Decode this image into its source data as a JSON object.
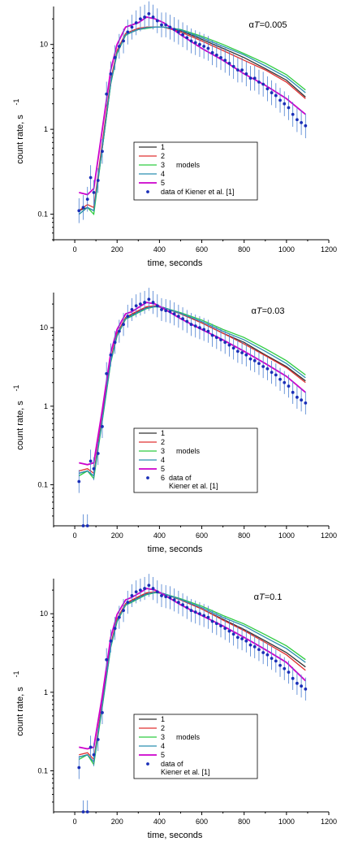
{
  "chart_data": [
    {
      "type": "line",
      "annotation_prefix": "α",
      "annotation_var": "T",
      "annotation_value": "=0.005",
      "xlabel": "time, seconds",
      "ylabel": "count rate, s",
      "ylabel_sup": "-1",
      "x_ticks": [
        "0",
        "200",
        "400",
        "600",
        "800",
        "1000",
        "1200"
      ],
      "y_ticks": [
        "0.1",
        "1",
        "10"
      ],
      "xlim": [
        -100,
        1200
      ],
      "ylim": [
        0.05,
        28
      ],
      "y_scale": "log",
      "legend": {
        "placement": "lower-center",
        "entries": [
          "1",
          "2",
          "3",
          "4",
          "5"
        ],
        "models_label": "models",
        "data_label": [
          "data of Kiener et al. [1]"
        ],
        "data_number": ""
      },
      "series": [
        {
          "color": "#333333",
          "x": [
            20,
            60,
            90,
            130,
            170,
            200,
            240,
            270,
            300,
            340,
            380,
            420,
            500,
            600,
            700,
            800,
            900,
            1000,
            1090
          ],
          "y": [
            0.11,
            0.12,
            0.11,
            0.6,
            3.5,
            8,
            13,
            14,
            15,
            16,
            16,
            16,
            14.5,
            11.5,
            9,
            7,
            5.2,
            3.8,
            2.4
          ]
        },
        {
          "color": "#e03030",
          "x": [
            20,
            60,
            90,
            130,
            170,
            200,
            240,
            270,
            300,
            340,
            380,
            420,
            500,
            600,
            700,
            800,
            900,
            1000,
            1090
          ],
          "y": [
            0.11,
            0.13,
            0.12,
            0.7,
            3.8,
            8.5,
            13.5,
            14.5,
            15.5,
            16,
            16,
            16,
            14,
            11,
            8.5,
            6.5,
            5,
            3.6,
            2.3
          ]
        },
        {
          "color": "#2ecc40",
          "x": [
            20,
            60,
            90,
            130,
            170,
            200,
            240,
            270,
            300,
            340,
            380,
            420,
            500,
            600,
            700,
            800,
            900,
            1000,
            1090
          ],
          "y": [
            0.1,
            0.12,
            0.1,
            0.6,
            3.4,
            7.8,
            12.8,
            14,
            15,
            15.5,
            16,
            16,
            15,
            12.5,
            10,
            7.8,
            6,
            4.4,
            2.9
          ]
        },
        {
          "color": "#2a8fb0",
          "x": [
            20,
            60,
            90,
            130,
            170,
            200,
            240,
            270,
            300,
            340,
            380,
            420,
            500,
            600,
            700,
            800,
            900,
            1000,
            1090
          ],
          "y": [
            0.1,
            0.12,
            0.11,
            0.62,
            3.5,
            8,
            13,
            14,
            15,
            15.8,
            16,
            16,
            14.8,
            12,
            9.5,
            7.5,
            5.6,
            4.1,
            2.7
          ]
        },
        {
          "color": "#cc00cc",
          "x": [
            20,
            60,
            90,
            130,
            170,
            200,
            240,
            270,
            300,
            340,
            380,
            420,
            500,
            600,
            700,
            800,
            900,
            1000,
            1090
          ],
          "y": [
            0.18,
            0.17,
            0.2,
            1.0,
            5,
            10,
            16,
            17,
            18,
            21,
            20,
            18,
            13,
            9,
            6.5,
            4.5,
            3.3,
            2.3,
            1.5
          ]
        }
      ],
      "data_points": {
        "color": "#1a2fb8",
        "x": [
          20,
          40,
          60,
          75,
          90,
          110,
          130,
          150,
          170,
          190,
          210,
          230,
          250,
          270,
          290,
          310,
          330,
          350,
          370,
          390,
          410,
          430,
          450,
          470,
          490,
          510,
          530,
          550,
          570,
          590,
          610,
          630,
          650,
          670,
          690,
          710,
          730,
          750,
          770,
          790,
          810,
          830,
          850,
          870,
          890,
          910,
          930,
          950,
          970,
          990,
          1010,
          1030,
          1050,
          1070,
          1090
        ],
        "y": [
          0.11,
          0.12,
          0.15,
          0.27,
          0.18,
          0.25,
          0.55,
          2.6,
          4.5,
          7,
          9.5,
          11,
          14,
          16,
          18,
          20,
          21,
          23,
          21,
          19,
          17,
          17,
          16,
          15,
          14,
          13,
          12,
          11,
          10.5,
          10,
          9.5,
          9,
          8,
          7.5,
          7,
          6.5,
          6,
          5.5,
          5,
          5,
          4.5,
          4,
          4,
          3.6,
          3.4,
          3,
          2.7,
          2.5,
          2.2,
          2,
          1.8,
          1.5,
          1.3,
          1.2,
          1.1
        ]
      }
    },
    {
      "type": "line",
      "annotation_prefix": "α",
      "annotation_var": "T",
      "annotation_value": "=0.03",
      "xlabel": "time, seconds",
      "ylabel": "count rate, s",
      "ylabel_sup": "-1",
      "x_ticks": [
        "0",
        "200",
        "400",
        "600",
        "800",
        "1000",
        "1200"
      ],
      "y_ticks": [
        "0.1",
        "1",
        "10"
      ],
      "xlim": [
        -100,
        1200
      ],
      "ylim": [
        0.03,
        28
      ],
      "y_scale": "log",
      "legend": {
        "placement": "lower-center",
        "entries": [
          "1",
          "2",
          "3",
          "4",
          "5"
        ],
        "models_label": "models",
        "data_label": [
          "data of",
          "Kiener et al. [1]"
        ],
        "data_number": "6"
      },
      "series": [
        {
          "color": "#333333",
          "x": [
            20,
            60,
            90,
            130,
            170,
            200,
            240,
            270,
            300,
            340,
            380,
            420,
            500,
            600,
            700,
            800,
            900,
            1000,
            1090
          ],
          "y": [
            0.14,
            0.15,
            0.13,
            0.7,
            3.8,
            8,
            13,
            14.5,
            16,
            18,
            18.5,
            18,
            15,
            11.5,
            8.5,
            6.5,
            4.5,
            3.2,
            2.1
          ]
        },
        {
          "color": "#e03030",
          "x": [
            20,
            60,
            90,
            130,
            170,
            200,
            240,
            270,
            300,
            340,
            380,
            420,
            500,
            600,
            700,
            800,
            900,
            1000,
            1090
          ],
          "y": [
            0.15,
            0.16,
            0.14,
            0.75,
            4,
            8.5,
            13.5,
            15,
            16.5,
            18.5,
            19,
            18,
            15,
            11.5,
            8.5,
            6.2,
            4.4,
            3.1,
            2
          ]
        },
        {
          "color": "#2ecc40",
          "x": [
            20,
            60,
            90,
            130,
            170,
            200,
            240,
            270,
            300,
            340,
            380,
            420,
            500,
            600,
            700,
            800,
            900,
            1000,
            1090
          ],
          "y": [
            0.13,
            0.15,
            0.12,
            0.65,
            3.6,
            7.8,
            12.8,
            14,
            15.5,
            17.5,
            18.5,
            18,
            15.5,
            12.5,
            9.5,
            7.5,
            5.4,
            3.8,
            2.5
          ]
        },
        {
          "color": "#2a8fb0",
          "x": [
            20,
            60,
            90,
            130,
            170,
            200,
            240,
            270,
            300,
            340,
            380,
            420,
            500,
            600,
            700,
            800,
            900,
            1000,
            1090
          ],
          "y": [
            0.14,
            0.15,
            0.13,
            0.68,
            3.7,
            8,
            13,
            14.3,
            15.8,
            17.8,
            18.6,
            18,
            15.2,
            12,
            9,
            7,
            5,
            3.5,
            2.3
          ]
        },
        {
          "color": "#cc00cc",
          "x": [
            20,
            60,
            90,
            130,
            170,
            200,
            240,
            270,
            300,
            340,
            380,
            420,
            500,
            600,
            700,
            800,
            900,
            1000,
            1090
          ],
          "y": [
            0.19,
            0.18,
            0.19,
            0.9,
            4.8,
            9.5,
            15,
            16,
            18,
            21,
            20,
            17.5,
            13,
            9.5,
            7,
            5,
            3.5,
            2.4,
            1.5
          ]
        }
      ],
      "data_points": {
        "color": "#1a2fb8",
        "x": [
          20,
          40,
          60,
          75,
          90,
          110,
          130,
          150,
          170,
          190,
          210,
          230,
          250,
          270,
          290,
          310,
          330,
          350,
          370,
          390,
          410,
          430,
          450,
          470,
          490,
          510,
          530,
          550,
          570,
          590,
          610,
          630,
          650,
          670,
          690,
          710,
          730,
          750,
          770,
          790,
          810,
          830,
          850,
          870,
          890,
          910,
          930,
          950,
          970,
          990,
          1010,
          1030,
          1050,
          1070,
          1090
        ],
        "y": [
          0.11,
          0.03,
          0.03,
          0.2,
          0.16,
          0.25,
          0.55,
          2.6,
          4.5,
          6.5,
          9,
          11,
          14,
          17,
          19,
          20,
          21,
          23,
          21,
          19,
          17,
          16.5,
          16,
          15,
          14,
          13,
          12,
          11,
          10.5,
          10,
          9.5,
          9,
          8,
          7.5,
          7,
          6.5,
          6,
          5.5,
          5,
          4.8,
          4.5,
          4,
          3.8,
          3.5,
          3.2,
          3,
          2.7,
          2.5,
          2.2,
          2,
          1.8,
          1.5,
          1.3,
          1.2,
          1.1
        ]
      }
    },
    {
      "type": "line",
      "annotation_prefix": "α",
      "annotation_var": "T",
      "annotation_value": "=0.1",
      "xlabel": "time, seconds",
      "ylabel": "count rate, s",
      "ylabel_sup": "-1",
      "x_ticks": [
        "0",
        "200",
        "400",
        "600",
        "800",
        "1000",
        "1200"
      ],
      "y_ticks": [
        "0.1",
        "1",
        "10"
      ],
      "xlim": [
        -100,
        1200
      ],
      "ylim": [
        0.03,
        28
      ],
      "y_scale": "log",
      "legend": {
        "placement": "lower-center",
        "entries": [
          "1",
          "2",
          "3",
          "4",
          "5"
        ],
        "models_label": "models",
        "data_label": [
          "data of",
          "Kiener et al. [1]"
        ],
        "data_number": ""
      },
      "series": [
        {
          "color": "#333333",
          "x": [
            20,
            60,
            90,
            130,
            170,
            200,
            240,
            270,
            300,
            340,
            380,
            420,
            500,
            600,
            700,
            800,
            900,
            1000,
            1090
          ],
          "y": [
            0.15,
            0.16,
            0.13,
            0.7,
            3.9,
            8.2,
            13,
            14.5,
            16,
            18,
            19,
            18,
            15,
            11.5,
            8.5,
            6.3,
            4.5,
            3.2,
            2.1
          ]
        },
        {
          "color": "#e03030",
          "x": [
            20,
            60,
            90,
            130,
            170,
            200,
            240,
            270,
            300,
            340,
            380,
            420,
            500,
            600,
            700,
            800,
            900,
            1000,
            1090
          ],
          "y": [
            0.16,
            0.17,
            0.14,
            0.75,
            4.1,
            8.6,
            13.5,
            15,
            16.5,
            18.5,
            19,
            18,
            15,
            11.5,
            8.3,
            6.1,
            4.3,
            3.0,
            1.9
          ]
        },
        {
          "color": "#2ecc40",
          "x": [
            20,
            60,
            90,
            130,
            170,
            200,
            240,
            270,
            300,
            340,
            380,
            420,
            500,
            600,
            700,
            800,
            900,
            1000,
            1090
          ],
          "y": [
            0.14,
            0.16,
            0.12,
            0.65,
            3.7,
            7.9,
            12.8,
            14,
            15.5,
            17.5,
            18.5,
            18,
            15.5,
            12.5,
            9.5,
            7.4,
            5.4,
            3.9,
            2.6
          ]
        },
        {
          "color": "#2a8fb0",
          "x": [
            20,
            60,
            90,
            130,
            170,
            200,
            240,
            270,
            300,
            340,
            380,
            420,
            500,
            600,
            700,
            800,
            900,
            1000,
            1090
          ],
          "y": [
            0.15,
            0.16,
            0.13,
            0.68,
            3.8,
            8.1,
            13,
            14.3,
            15.8,
            17.8,
            18.7,
            18,
            15.2,
            12,
            9,
            7,
            5,
            3.6,
            2.4
          ]
        },
        {
          "color": "#cc00cc",
          "x": [
            20,
            60,
            90,
            130,
            170,
            200,
            240,
            270,
            300,
            340,
            380,
            420,
            500,
            600,
            700,
            800,
            900,
            1000,
            1090
          ],
          "y": [
            0.2,
            0.19,
            0.2,
            0.9,
            5,
            9.8,
            15,
            16.2,
            18,
            21,
            20,
            17.5,
            13,
            9.5,
            7,
            5,
            3.5,
            2.4,
            1.4
          ]
        }
      ],
      "data_points": {
        "color": "#1a2fb8",
        "x": [
          20,
          40,
          60,
          75,
          90,
          110,
          130,
          150,
          170,
          190,
          210,
          230,
          250,
          270,
          290,
          310,
          330,
          350,
          370,
          390,
          410,
          430,
          450,
          470,
          490,
          510,
          530,
          550,
          570,
          590,
          610,
          630,
          650,
          670,
          690,
          710,
          730,
          750,
          770,
          790,
          810,
          830,
          850,
          870,
          890,
          910,
          930,
          950,
          970,
          990,
          1010,
          1030,
          1050,
          1070,
          1090
        ],
        "y": [
          0.11,
          0.03,
          0.03,
          0.2,
          0.16,
          0.25,
          0.55,
          2.6,
          4.5,
          6.5,
          9,
          11,
          14,
          17,
          19,
          20,
          21,
          23,
          21,
          19,
          17,
          16.5,
          16,
          15,
          14,
          13,
          12,
          11,
          10.5,
          10,
          9.5,
          9,
          8,
          7.5,
          7,
          6.5,
          6,
          5.5,
          5,
          4.8,
          4.5,
          4,
          3.8,
          3.5,
          3.2,
          3,
          2.7,
          2.5,
          2.2,
          2,
          1.8,
          1.5,
          1.3,
          1.2,
          1.1
        ]
      }
    }
  ]
}
